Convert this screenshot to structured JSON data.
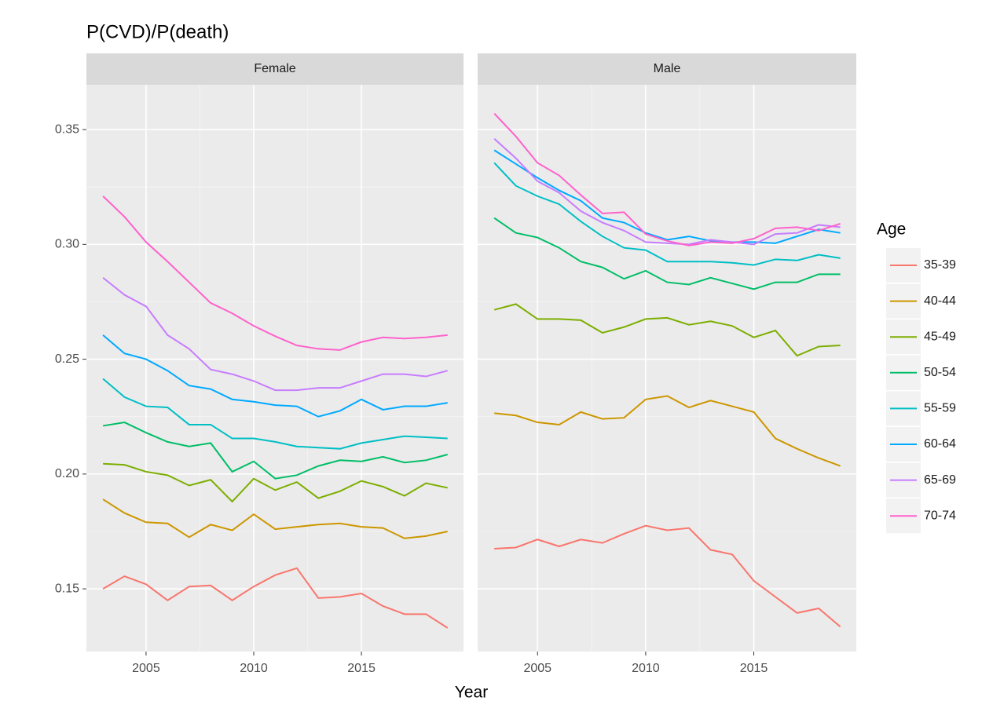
{
  "title": "P(CVD)/P(death)",
  "xlabel": "Year",
  "legend_title": "Age",
  "chart_data": [
    {
      "type": "line",
      "facet": "Female",
      "x": [
        2003,
        2004,
        2005,
        2006,
        2007,
        2008,
        2009,
        2010,
        2011,
        2012,
        2013,
        2014,
        2015,
        2016,
        2017,
        2018,
        2019
      ],
      "xlim": [
        2002.23,
        2019.74
      ],
      "xticks": [
        2005,
        2010,
        2015
      ],
      "ylim": [
        0.1227,
        0.3695
      ],
      "yticks": [
        0.15,
        {
          "value": 0.2,
          "label": "0.20"
        },
        0.25,
        {
          "value": 0.3,
          "label": "0.30"
        },
        0.35
      ],
      "grid": true,
      "series": [
        {
          "name": "35-39",
          "color": "#F8766D",
          "values": [
            0.15,
            0.1555,
            0.152,
            0.145,
            0.151,
            0.1515,
            0.145,
            0.151,
            0.156,
            0.159,
            0.146,
            0.1465,
            0.148,
            0.1425,
            0.139,
            0.139,
            0.133
          ]
        },
        {
          "name": "40-44",
          "color": "#CD9600",
          "values": [
            0.189,
            0.183,
            0.179,
            0.1785,
            0.1725,
            0.178,
            0.1755,
            0.1825,
            0.176,
            0.177,
            0.178,
            0.1785,
            0.177,
            0.1765,
            0.172,
            0.173,
            0.175
          ]
        },
        {
          "name": "45-49",
          "color": "#7CAE00",
          "values": [
            0.2045,
            0.204,
            0.201,
            0.1995,
            0.195,
            0.1975,
            0.188,
            0.198,
            0.193,
            0.1965,
            0.1895,
            0.1925,
            0.197,
            0.1945,
            0.1905,
            0.196,
            0.194
          ]
        },
        {
          "name": "50-54",
          "color": "#00BE67",
          "values": [
            0.221,
            0.2225,
            0.218,
            0.214,
            0.212,
            0.2135,
            0.201,
            0.2055,
            0.198,
            0.1995,
            0.2035,
            0.206,
            0.2055,
            0.2075,
            0.205,
            0.206,
            0.2085
          ]
        },
        {
          "name": "55-59",
          "color": "#00BFC4",
          "values": [
            0.2415,
            0.2335,
            0.2295,
            0.229,
            0.2215,
            0.2215,
            0.2155,
            0.2155,
            0.214,
            0.212,
            0.2115,
            0.211,
            0.2135,
            0.215,
            0.2165,
            0.216,
            0.2155
          ]
        },
        {
          "name": "60-64",
          "color": "#00A9FF",
          "values": [
            0.2605,
            0.2525,
            0.25,
            0.245,
            0.2385,
            0.237,
            0.2325,
            0.2315,
            0.23,
            0.2295,
            0.225,
            0.2275,
            0.2325,
            0.228,
            0.2295,
            0.2295,
            0.231
          ]
        },
        {
          "name": "65-69",
          "color": "#C77CFF",
          "values": [
            0.2855,
            0.278,
            0.273,
            0.2605,
            0.2545,
            0.2455,
            0.2435,
            0.2405,
            0.2365,
            0.2365,
            0.2375,
            0.2375,
            0.2405,
            0.2435,
            0.2435,
            0.2425,
            0.245
          ]
        },
        {
          "name": "70-74",
          "color": "#FF61CC",
          "values": [
            0.321,
            0.312,
            0.301,
            0.2925,
            0.2835,
            0.2745,
            0.27,
            0.2645,
            0.26,
            0.256,
            0.2545,
            0.254,
            0.2575,
            0.2595,
            0.259,
            0.2595,
            0.2605
          ]
        }
      ]
    },
    {
      "type": "line",
      "facet": "Male",
      "x": [
        2003,
        2004,
        2005,
        2006,
        2007,
        2008,
        2009,
        2010,
        2011,
        2012,
        2013,
        2014,
        2015,
        2016,
        2017,
        2018,
        2019
      ],
      "xlim": [
        2002.23,
        2019.74
      ],
      "xticks": [
        2005,
        2010,
        2015
      ],
      "ylim": [
        0.1227,
        0.3695
      ],
      "yticks": [
        0.15,
        {
          "value": 0.2,
          "label": "0.20"
        },
        0.25,
        {
          "value": 0.3,
          "label": "0.30"
        },
        0.35
      ],
      "grid": true,
      "series": [
        {
          "name": "35-39",
          "color": "#F8766D",
          "values": [
            0.1675,
            0.168,
            0.1715,
            0.1685,
            0.1715,
            0.17,
            0.174,
            0.1775,
            0.1755,
            0.1765,
            0.167,
            0.165,
            0.1535,
            0.1465,
            0.1395,
            0.1415,
            0.1335
          ]
        },
        {
          "name": "40-44",
          "color": "#CD9600",
          "values": [
            0.2265,
            0.2255,
            0.2225,
            0.2215,
            0.227,
            0.224,
            0.2245,
            0.2325,
            0.234,
            0.229,
            0.232,
            0.2295,
            0.227,
            0.2155,
            0.211,
            0.207,
            0.2035
          ]
        },
        {
          "name": "45-49",
          "color": "#7CAE00",
          "values": [
            0.2715,
            0.274,
            0.2675,
            0.2675,
            0.267,
            0.2615,
            0.264,
            0.2675,
            0.268,
            0.265,
            0.2665,
            0.2645,
            0.2595,
            0.2625,
            0.2515,
            0.2555,
            0.256
          ]
        },
        {
          "name": "50-54",
          "color": "#00BE67",
          "values": [
            0.3115,
            0.305,
            0.303,
            0.2985,
            0.2925,
            0.29,
            0.285,
            0.2885,
            0.2835,
            0.2825,
            0.2855,
            0.283,
            0.2805,
            0.2835,
            0.2835,
            0.287,
            0.287
          ]
        },
        {
          "name": "55-59",
          "color": "#00BFC4",
          "values": [
            0.3355,
            0.3255,
            0.321,
            0.3175,
            0.31,
            0.3035,
            0.2985,
            0.2975,
            0.2925,
            0.2925,
            0.2925,
            0.292,
            0.291,
            0.2935,
            0.293,
            0.2955,
            0.294
          ]
        },
        {
          "name": "60-64",
          "color": "#00A9FF",
          "values": [
            0.341,
            0.335,
            0.329,
            0.3235,
            0.319,
            0.3115,
            0.3095,
            0.305,
            0.302,
            0.3035,
            0.3015,
            0.301,
            0.301,
            0.3005,
            0.3035,
            0.3065,
            0.305
          ]
        },
        {
          "name": "65-69",
          "color": "#C77CFF",
          "values": [
            0.346,
            0.3375,
            0.3275,
            0.3225,
            0.3145,
            0.3095,
            0.306,
            0.301,
            0.3005,
            0.3,
            0.302,
            0.301,
            0.3,
            0.3045,
            0.305,
            0.3085,
            0.3075
          ]
        },
        {
          "name": "70-74",
          "color": "#FF61CC",
          "values": [
            0.357,
            0.347,
            0.3355,
            0.33,
            0.3215,
            0.3135,
            0.314,
            0.3045,
            0.3015,
            0.2995,
            0.301,
            0.3005,
            0.3025,
            0.307,
            0.3075,
            0.306,
            0.309
          ]
        }
      ]
    }
  ]
}
